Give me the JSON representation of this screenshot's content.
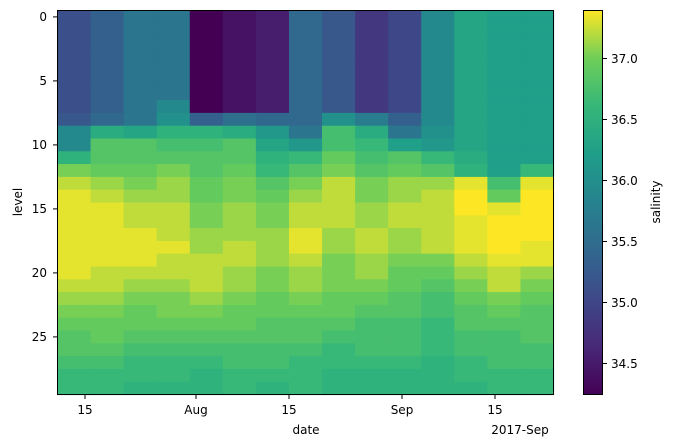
{
  "chart_data": {
    "type": "heatmap",
    "xlabel": "date",
    "ylabel": "level",
    "colorbar_label": "salinity",
    "colormap": "viridis",
    "x_ticks": [
      "15",
      "Aug",
      "15",
      "Sep",
      "15"
    ],
    "x_offset_label": "2017-Sep",
    "y_ticks": [
      "0",
      "5",
      "10",
      "15",
      "20",
      "25"
    ],
    "ylim": [
      29.5,
      -0.5
    ],
    "colorbar_ticks": [
      "34.5",
      "35.0",
      "35.5",
      "36.0",
      "36.5",
      "37.0"
    ],
    "value_range": [
      34.22,
      37.37
    ],
    "columns": [
      "Jul 11",
      "Jul 16",
      "Jul 21",
      "Jul 26",
      "Jul 31",
      "Aug 05",
      "Aug 10",
      "Aug 15",
      "Aug 20",
      "Aug 25",
      "Aug 30",
      "Sep 04",
      "Sep 09",
      "Sep 14",
      "Sep 19"
    ],
    "levels": [
      0,
      1,
      2,
      3,
      4,
      5,
      6,
      7,
      8,
      9,
      10,
      11,
      12,
      13,
      14,
      15,
      16,
      17,
      18,
      19,
      20,
      21,
      22,
      23,
      24,
      25,
      26,
      27,
      28,
      29
    ],
    "values": [
      [
        35.1,
        35.3,
        35.6,
        35.6,
        34.2,
        34.4,
        34.5,
        35.4,
        35.2,
        34.8,
        35.0,
        35.9,
        36.3,
        36.2,
        36.2
      ],
      [
        35.1,
        35.3,
        35.6,
        35.6,
        34.2,
        34.4,
        34.5,
        35.4,
        35.2,
        34.8,
        35.0,
        35.9,
        36.3,
        36.2,
        36.2
      ],
      [
        35.1,
        35.3,
        35.6,
        35.6,
        34.2,
        34.4,
        34.5,
        35.4,
        35.2,
        34.8,
        35.0,
        35.9,
        36.3,
        36.2,
        36.2
      ],
      [
        35.1,
        35.3,
        35.6,
        35.6,
        34.2,
        34.4,
        34.5,
        35.4,
        35.2,
        34.8,
        35.0,
        35.9,
        36.3,
        36.2,
        36.2
      ],
      [
        35.1,
        35.3,
        35.6,
        35.6,
        34.2,
        34.4,
        34.5,
        35.4,
        35.2,
        34.8,
        35.0,
        35.9,
        36.3,
        36.2,
        36.2
      ],
      [
        35.1,
        35.3,
        35.6,
        35.6,
        34.2,
        34.4,
        34.5,
        35.4,
        35.2,
        34.8,
        35.0,
        35.9,
        36.3,
        36.2,
        36.2
      ],
      [
        35.1,
        35.3,
        35.6,
        35.6,
        34.2,
        34.4,
        34.5,
        35.4,
        35.2,
        34.8,
        35.0,
        35.9,
        36.3,
        36.2,
        36.2
      ],
      [
        35.1,
        35.3,
        35.6,
        35.9,
        34.2,
        34.4,
        34.5,
        35.4,
        35.2,
        34.8,
        35.0,
        35.9,
        36.3,
        36.2,
        36.2
      ],
      [
        35.2,
        35.4,
        35.6,
        36.0,
        35.3,
        35.5,
        35.4,
        35.4,
        36.0,
        35.7,
        35.3,
        35.9,
        36.3,
        36.2,
        36.2
      ],
      [
        35.9,
        36.4,
        36.3,
        36.5,
        36.5,
        36.4,
        36.1,
        35.6,
        36.7,
        36.4,
        35.6,
        36.0,
        36.3,
        36.2,
        36.2
      ],
      [
        35.9,
        36.8,
        36.8,
        36.7,
        36.7,
        36.8,
        36.3,
        36.1,
        36.7,
        36.6,
        36.2,
        36.1,
        36.3,
        36.2,
        36.2
      ],
      [
        36.5,
        36.8,
        36.8,
        36.8,
        36.8,
        36.8,
        36.5,
        36.6,
        36.9,
        36.7,
        36.8,
        36.6,
        36.4,
        36.2,
        36.2
      ],
      [
        37.0,
        36.9,
        36.9,
        37.0,
        36.8,
        36.9,
        36.6,
        36.8,
        37.0,
        36.8,
        36.9,
        36.8,
        36.5,
        36.2,
        36.6
      ],
      [
        37.2,
        37.1,
        37.0,
        37.1,
        36.9,
        37.0,
        36.8,
        37.0,
        37.2,
        37.0,
        37.1,
        37.1,
        37.3,
        36.7,
        37.3
      ],
      [
        37.3,
        37.2,
        37.1,
        37.1,
        36.9,
        37.0,
        36.9,
        37.1,
        37.2,
        37.0,
        37.1,
        37.2,
        37.4,
        36.9,
        37.4
      ],
      [
        37.3,
        37.3,
        37.2,
        37.2,
        37.0,
        37.1,
        37.0,
        37.2,
        37.2,
        37.1,
        37.2,
        37.2,
        37.4,
        37.3,
        37.4
      ],
      [
        37.3,
        37.3,
        37.2,
        37.2,
        37.0,
        37.1,
        37.0,
        37.2,
        37.2,
        37.1,
        37.2,
        37.2,
        37.3,
        37.4,
        37.4
      ],
      [
        37.3,
        37.3,
        37.3,
        37.2,
        37.1,
        37.1,
        37.1,
        37.3,
        37.1,
        37.2,
        37.1,
        37.2,
        37.3,
        37.4,
        37.4
      ],
      [
        37.3,
        37.3,
        37.3,
        37.3,
        37.1,
        37.2,
        37.1,
        37.3,
        37.1,
        37.2,
        37.1,
        37.2,
        37.3,
        37.4,
        37.3
      ],
      [
        37.3,
        37.3,
        37.3,
        37.2,
        37.2,
        37.2,
        37.1,
        37.2,
        37.0,
        37.1,
        37.0,
        37.0,
        37.2,
        37.3,
        37.3
      ],
      [
        37.3,
        37.2,
        37.2,
        37.2,
        37.2,
        37.1,
        37.0,
        37.1,
        37.0,
        37.1,
        36.9,
        36.9,
        37.1,
        37.2,
        37.1
      ],
      [
        37.2,
        37.2,
        37.1,
        37.1,
        37.2,
        37.1,
        37.0,
        37.1,
        37.0,
        37.0,
        36.9,
        36.8,
        37.0,
        37.2,
        37.0
      ],
      [
        37.1,
        37.1,
        37.0,
        37.0,
        37.1,
        37.0,
        36.9,
        37.0,
        36.9,
        36.9,
        36.8,
        36.7,
        36.9,
        37.0,
        36.9
      ],
      [
        37.0,
        37.0,
        36.9,
        37.0,
        37.0,
        36.9,
        36.9,
        36.9,
        36.9,
        36.8,
        36.8,
        36.7,
        36.8,
        36.9,
        36.8
      ],
      [
        36.9,
        36.9,
        36.9,
        36.9,
        36.9,
        36.9,
        36.8,
        36.8,
        36.8,
        36.7,
        36.7,
        36.6,
        36.8,
        36.8,
        36.8
      ],
      [
        36.8,
        36.9,
        36.8,
        36.8,
        36.8,
        36.8,
        36.8,
        36.8,
        36.7,
        36.7,
        36.7,
        36.6,
        36.7,
        36.7,
        36.8
      ],
      [
        36.8,
        36.8,
        36.7,
        36.7,
        36.7,
        36.7,
        36.7,
        36.7,
        36.6,
        36.7,
        36.7,
        36.6,
        36.7,
        36.7,
        36.7
      ],
      [
        36.7,
        36.7,
        36.6,
        36.6,
        36.6,
        36.7,
        36.7,
        36.6,
        36.6,
        36.6,
        36.6,
        36.5,
        36.6,
        36.7,
        36.7
      ],
      [
        36.6,
        36.6,
        36.6,
        36.6,
        36.5,
        36.6,
        36.6,
        36.6,
        36.5,
        36.5,
        36.5,
        36.5,
        36.6,
        36.6,
        36.6
      ],
      [
        36.6,
        36.6,
        36.5,
        36.5,
        36.5,
        36.6,
        36.5,
        36.6,
        36.5,
        36.5,
        36.5,
        36.5,
        36.5,
        36.6,
        36.6
      ]
    ]
  }
}
